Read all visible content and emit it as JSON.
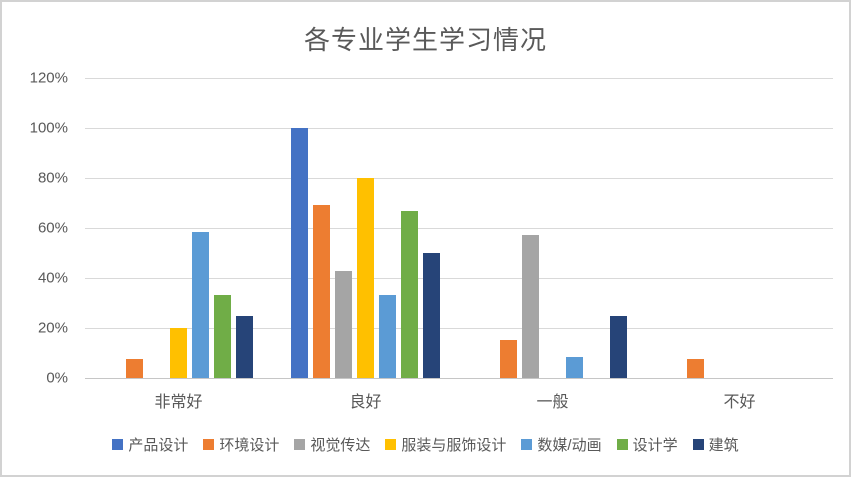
{
  "window": {
    "background": "#ffffff",
    "border_color": "#d2d2d2"
  },
  "styles": {
    "title_color": "#595959",
    "axis_text_color": "#595959",
    "gridline_color": "#d9d9d9",
    "axis_line_color": "#c6c6c6"
  },
  "chart_data": {
    "type": "bar",
    "title": "各专业学生学习情况",
    "xlabel": "",
    "ylabel": "",
    "grid": true,
    "legend_position": "bottom",
    "categories": [
      "非常好",
      "良好",
      "一般",
      "不好"
    ],
    "y_axis": {
      "min": 0,
      "max": 120,
      "step": 20,
      "tick_values": [
        0,
        20,
        40,
        60,
        80,
        100,
        120
      ],
      "tick_labels": [
        "0%",
        "20%",
        "40%",
        "60%",
        "80%",
        "100%",
        "120%"
      ]
    },
    "series": [
      {
        "name": "产品设计",
        "color": "#4472c4",
        "values": [
          0,
          100,
          0,
          0
        ]
      },
      {
        "name": "环境设计",
        "color": "#ed7d31",
        "values": [
          7.69,
          69.23,
          15.38,
          7.69
        ]
      },
      {
        "name": "视觉传达",
        "color": "#a5a5a5",
        "values": [
          0,
          42.86,
          57.14,
          0
        ]
      },
      {
        "name": "服装与服饰设计",
        "color": "#ffc000",
        "values": [
          20,
          80,
          0,
          0
        ]
      },
      {
        "name": "数媒/动画",
        "color": "#5b9bd5",
        "values": [
          58.33,
          33.33,
          8.33,
          0
        ]
      },
      {
        "name": "设计学",
        "color": "#70ad47",
        "values": [
          33.33,
          66.67,
          0,
          0
        ]
      },
      {
        "name": "建筑",
        "color": "#264478",
        "values": [
          25,
          50,
          25,
          0
        ]
      }
    ]
  }
}
